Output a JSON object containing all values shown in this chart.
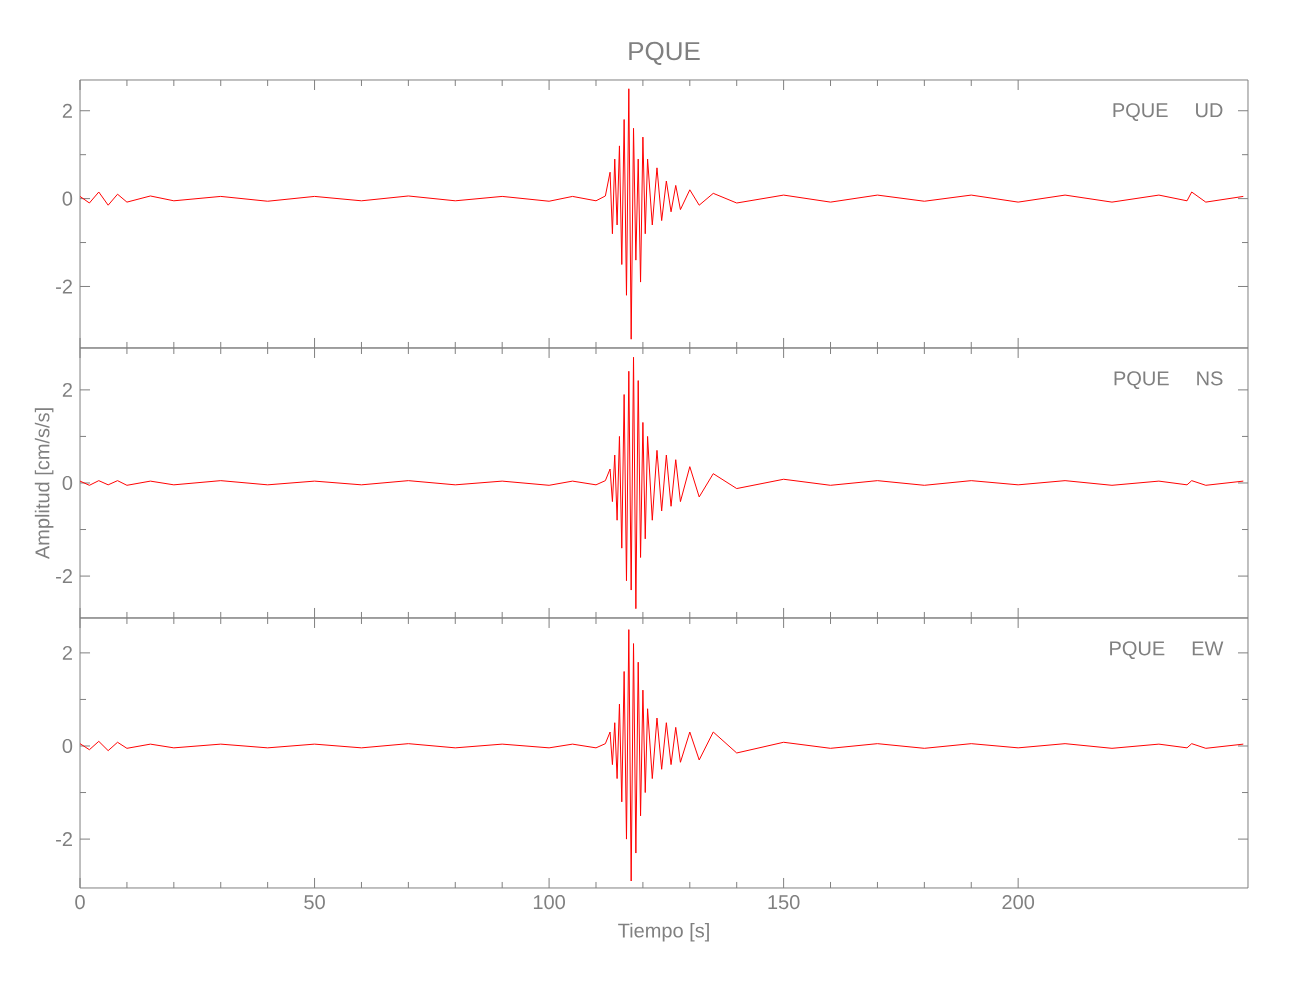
{
  "chart_data": [
    {
      "type": "line",
      "title": "PQUE",
      "annotations": [
        "PQUE UD"
      ],
      "tick_labels": "y",
      "xlim": [
        0,
        249
      ],
      "xticks": [
        0,
        50,
        100,
        150,
        200
      ],
      "ylim": [
        -3.4,
        2.7
      ],
      "yticks": [
        -2,
        0,
        2
      ],
      "series": [
        {
          "color": "#ff0000",
          "x": [
            0,
            2,
            4,
            6,
            8,
            10,
            15,
            20,
            30,
            40,
            50,
            60,
            70,
            80,
            90,
            100,
            105,
            110,
            112,
            113,
            113.5,
            114,
            114.5,
            115,
            115.5,
            116,
            116.5,
            117,
            117.5,
            118,
            118.5,
            119,
            119.5,
            120,
            120.5,
            121,
            122,
            123,
            124,
            125,
            126,
            127,
            128,
            130,
            132,
            135,
            140,
            150,
            160,
            170,
            180,
            190,
            200,
            210,
            220,
            230,
            236,
            237,
            240,
            248
          ],
          "values": [
            0.05,
            -0.1,
            0.15,
            -0.15,
            0.1,
            -0.08,
            0.06,
            -0.05,
            0.05,
            -0.06,
            0.05,
            -0.05,
            0.06,
            -0.05,
            0.05,
            -0.06,
            0.05,
            -0.05,
            0.06,
            0.6,
            -0.8,
            0.9,
            -0.6,
            1.2,
            -1.5,
            1.8,
            -2.2,
            2.5,
            -3.2,
            1.6,
            -1.4,
            0.9,
            -1.9,
            1.4,
            -0.8,
            0.9,
            -0.6,
            0.7,
            -0.5,
            0.4,
            -0.3,
            0.3,
            -0.25,
            0.2,
            -0.15,
            0.12,
            -0.1,
            0.08,
            -0.08,
            0.08,
            -0.06,
            0.08,
            -0.08,
            0.08,
            -0.08,
            0.08,
            -0.05,
            0.15,
            -0.08,
            0.05
          ]
        }
      ]
    },
    {
      "type": "line",
      "ylabel": "Amplitud [cm/s/s]",
      "annotations": [
        "PQUE NS"
      ],
      "tick_labels": "y",
      "xlim": [
        0,
        249
      ],
      "xticks": [
        0,
        50,
        100,
        150,
        200
      ],
      "ylim": [
        -2.9,
        2.9
      ],
      "yticks": [
        -2,
        0,
        2
      ],
      "series": [
        {
          "color": "#ff0000",
          "x": [
            0,
            2,
            4,
            6,
            8,
            10,
            15,
            20,
            30,
            40,
            50,
            60,
            70,
            80,
            90,
            100,
            105,
            110,
            112,
            113,
            113.5,
            114,
            114.5,
            115,
            115.5,
            116,
            116.5,
            117,
            117.5,
            118,
            118.5,
            119,
            119.5,
            120,
            120.5,
            121,
            122,
            123,
            124,
            125,
            126,
            127,
            128,
            130,
            132,
            135,
            140,
            150,
            160,
            170,
            180,
            190,
            200,
            210,
            220,
            230,
            236,
            237,
            240,
            248
          ],
          "values": [
            0.04,
            -0.05,
            0.05,
            -0.04,
            0.05,
            -0.05,
            0.04,
            -0.04,
            0.05,
            -0.04,
            0.04,
            -0.04,
            0.05,
            -0.04,
            0.04,
            -0.05,
            0.04,
            -0.04,
            0.05,
            0.3,
            -0.4,
            0.6,
            -0.8,
            1.0,
            -1.4,
            1.9,
            -2.1,
            2.4,
            -2.3,
            2.7,
            -2.7,
            2.2,
            -1.6,
            1.3,
            -1.2,
            1.0,
            -0.8,
            0.7,
            -0.6,
            0.6,
            -0.5,
            0.5,
            -0.4,
            0.35,
            -0.3,
            0.2,
            -0.12,
            0.08,
            -0.05,
            0.05,
            -0.05,
            0.05,
            -0.04,
            0.05,
            -0.05,
            0.04,
            -0.04,
            0.05,
            -0.05,
            0.04
          ]
        }
      ]
    },
    {
      "type": "line",
      "xlabel": "Tiempo [s]",
      "annotations": [
        "PQUE EW"
      ],
      "xlim": [
        0,
        249
      ],
      "xticks": [
        0,
        50,
        100,
        150,
        200
      ],
      "ylim": [
        -3.05,
        2.75
      ],
      "yticks": [
        -2,
        0,
        2
      ],
      "series": [
        {
          "color": "#ff0000",
          "x": [
            0,
            2,
            4,
            6,
            8,
            10,
            15,
            20,
            30,
            40,
            50,
            60,
            70,
            80,
            90,
            100,
            105,
            110,
            112,
            113,
            113.5,
            114,
            114.5,
            115,
            115.5,
            116,
            116.5,
            117,
            117.5,
            118,
            118.5,
            119,
            119.5,
            120,
            120.5,
            121,
            122,
            123,
            124,
            125,
            126,
            127,
            128,
            130,
            132,
            135,
            140,
            150,
            160,
            170,
            180,
            190,
            200,
            210,
            220,
            230,
            236,
            237,
            240,
            248
          ],
          "values": [
            0.05,
            -0.08,
            0.1,
            -0.1,
            0.08,
            -0.05,
            0.04,
            -0.04,
            0.04,
            -0.04,
            0.04,
            -0.04,
            0.05,
            -0.04,
            0.04,
            -0.04,
            0.04,
            -0.04,
            0.05,
            0.3,
            -0.4,
            0.5,
            -0.7,
            0.9,
            -1.2,
            1.6,
            -2.0,
            2.5,
            -2.9,
            2.2,
            -2.3,
            1.8,
            -1.5,
            1.2,
            -1.0,
            0.8,
            -0.7,
            0.6,
            -0.5,
            0.5,
            -0.4,
            0.4,
            -0.35,
            0.3,
            -0.3,
            0.3,
            -0.15,
            0.08,
            -0.05,
            0.05,
            -0.05,
            0.05,
            -0.04,
            0.05,
            -0.05,
            0.04,
            -0.04,
            0.05,
            -0.05,
            0.04
          ]
        }
      ]
    }
  ]
}
